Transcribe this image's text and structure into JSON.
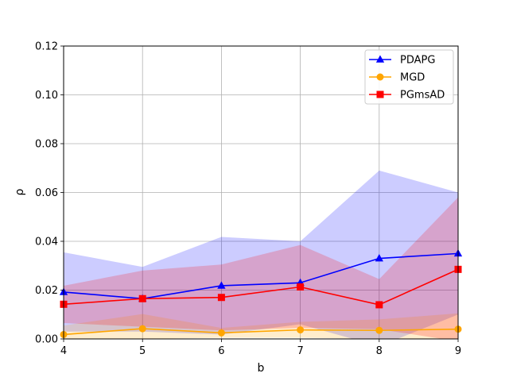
{
  "chart_data": {
    "type": "line",
    "title": "",
    "xlabel": "b",
    "ylabel": "ρ",
    "xlim": [
      4,
      9
    ],
    "ylim": [
      0,
      0.12
    ],
    "x": [
      4,
      5,
      6,
      7,
      8,
      9
    ],
    "x_ticks": [
      "4",
      "5",
      "6",
      "7",
      "8",
      "9"
    ],
    "y_ticks": [
      "0.00",
      "0.02",
      "0.04",
      "0.06",
      "0.08",
      "0.10",
      "0.12"
    ],
    "y_tick_values": [
      0,
      0.02,
      0.04,
      0.06,
      0.08,
      0.1,
      0.12
    ],
    "grid": true,
    "legend_position": "top-right",
    "series": [
      {
        "name": "PDAPG",
        "color": "#0000ff",
        "marker": "triangle",
        "values": [
          0.0192,
          0.0165,
          0.0218,
          0.023,
          0.033,
          0.035
        ],
        "upper": [
          0.0355,
          0.0295,
          0.0418,
          0.04,
          0.069,
          0.06
        ],
        "lower": [
          0.003,
          0.003,
          0.0018,
          0.006,
          -0.003,
          0.01
        ]
      },
      {
        "name": "MGD",
        "color": "#ffa500",
        "marker": "circle",
        "values": [
          0.0018,
          0.0042,
          0.0025,
          0.0037,
          0.0035,
          0.004
        ],
        "upper": [
          0.0055,
          0.0102,
          0.0045,
          0.007,
          0.008,
          0.0105
        ],
        "lower": [
          0.0,
          0.0,
          0.0005,
          0.0005,
          0.0,
          0.0
        ]
      },
      {
        "name": "PGmsAD",
        "color": "#ff0000",
        "marker": "square",
        "values": [
          0.0142,
          0.0165,
          0.017,
          0.0213,
          0.014,
          0.0285
        ],
        "upper": [
          0.0218,
          0.028,
          0.0305,
          0.0385,
          0.0245,
          0.058
        ],
        "lower": [
          0.0065,
          0.005,
          0.0035,
          0.0045,
          0.004,
          -0.001
        ]
      }
    ]
  }
}
